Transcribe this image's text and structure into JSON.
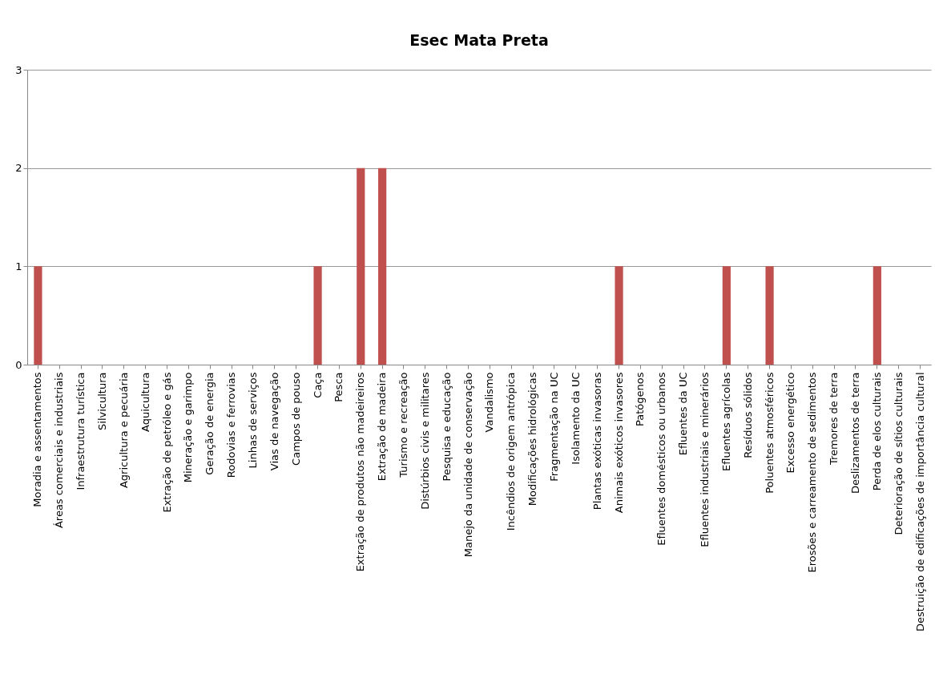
{
  "chart_data": {
    "type": "bar",
    "title": "Esec Mata Preta",
    "categories": [
      "Moradia e assentamentos",
      "Áreas comerciais e industriais",
      "Infraestrutura turística",
      "Silvicultura",
      "Agricultura e pecuária",
      "Aquicultura",
      "Extração de petróleo e gás",
      "Mineração e garimpo",
      "Geração de energia",
      "Rodovias e ferrovias",
      "Linhas de serviços",
      "Vias de navegação",
      "Campos de pouso",
      "Caça",
      "Pesca",
      "Extração de produtos não madeireiros",
      "Extração de madeira",
      "Turismo e recreação",
      "Distúrbios civis e militares",
      "Pesquisa e educação",
      "Manejo da unidade de conservação",
      "Vandalismo",
      "Incêndios de origem antrópica",
      "Modificações hidrológicas",
      "Fragmentação na UC",
      "Isolamento da UC",
      "Plantas exóticas invasoras",
      "Animais exóticos invasores",
      "Patógenos",
      "Efluentes domésticos ou urbanos",
      "Efluentes da UC",
      "Efluentes industriais e  minerários",
      "Efluentes agrícolas",
      "Resíduos sólidos",
      "Poluentes atmosféricos",
      "Excesso energético",
      "Erosões e carreamento de sedimentos",
      "Tremores de terra",
      "Deslizamentos de terra",
      "Perda de elos culturais",
      "Deterioração de sítios culturais",
      "Destruição de edificações de importância cultural"
    ],
    "values": [
      1,
      0,
      0,
      0,
      0,
      0,
      0,
      0,
      0,
      0,
      0,
      0,
      0,
      1,
      0,
      2,
      2,
      0,
      0,
      0,
      0,
      0,
      0,
      0,
      0,
      0,
      0,
      1,
      0,
      0,
      0,
      0,
      1,
      0,
      1,
      0,
      0,
      0,
      0,
      1,
      0,
      0
    ],
    "color": "#c0504d",
    "ylim": [
      0,
      3
    ],
    "yticks": [
      0,
      1,
      2,
      3
    ],
    "grid": "y"
  }
}
